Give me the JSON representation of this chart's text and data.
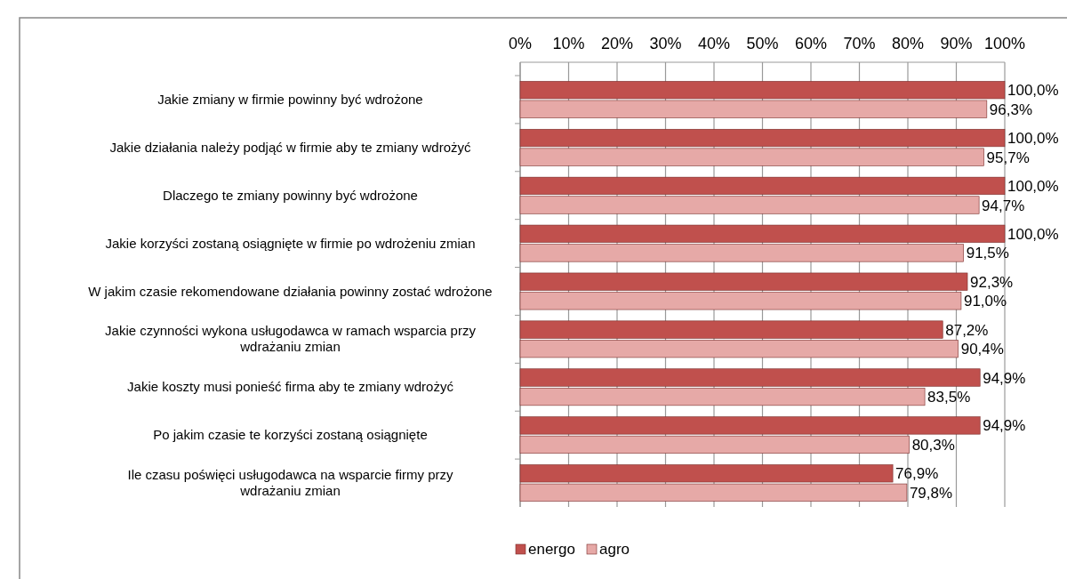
{
  "chart_data": {
    "type": "bar",
    "orientation": "horizontal",
    "categories": [
      "Jakie zmiany w firmie powinny być wdrożone",
      "Jakie działania należy podjąć w firmie aby te zmiany wdrożyć",
      "Dlaczego te zmiany powinny być wdrożone",
      "Jakie korzyści zostaną osiągnięte w firmie po wdrożeniu zmian",
      "W jakim czasie rekomendowane działania powinny zostać wdrożone",
      "Jakie czynności wykona usługodawca w ramach wsparcia przy wdrażaniu zmian",
      "Jakie koszty musi ponieść firma aby te zmiany wdrożyć",
      "Po jakim czasie te korzyści zostaną osiągnięte",
      "Ile czasu poświęci usługodawca na wsparcie firmy przy wdrażaniu zmian"
    ],
    "series": [
      {
        "name": "energo",
        "color": "#c0504d",
        "values": [
          100.0,
          100.0,
          100.0,
          100.0,
          92.3,
          87.2,
          94.9,
          94.9,
          76.9
        ],
        "value_labels": [
          "100,0%",
          "100,0%",
          "100,0%",
          "100,0%",
          "92,3%",
          "87,2%",
          "94,9%",
          "94,9%",
          "76,9%"
        ]
      },
      {
        "name": "agro",
        "color": "#e6a9a7",
        "values": [
          96.3,
          95.7,
          94.7,
          91.5,
          91.0,
          90.4,
          83.5,
          80.3,
          79.8
        ],
        "value_labels": [
          "96,3%",
          "95,7%",
          "94,7%",
          "91,5%",
          "91,0%",
          "90,4%",
          "83,5%",
          "80,3%",
          "79,8%"
        ]
      }
    ],
    "xlim": [
      0,
      100
    ],
    "xticks": [
      {
        "value": 0,
        "label": "0%"
      },
      {
        "value": 10,
        "label": "10%"
      },
      {
        "value": 20,
        "label": "20%"
      },
      {
        "value": 30,
        "label": "30%"
      },
      {
        "value": 40,
        "label": "40%"
      },
      {
        "value": 50,
        "label": "50%"
      },
      {
        "value": 60,
        "label": "60%"
      },
      {
        "value": 70,
        "label": "70%"
      },
      {
        "value": 80,
        "label": "80%"
      },
      {
        "value": 90,
        "label": "90%"
      },
      {
        "value": 100,
        "label": "100%"
      }
    ],
    "grid": "x",
    "legend": "bottom"
  }
}
